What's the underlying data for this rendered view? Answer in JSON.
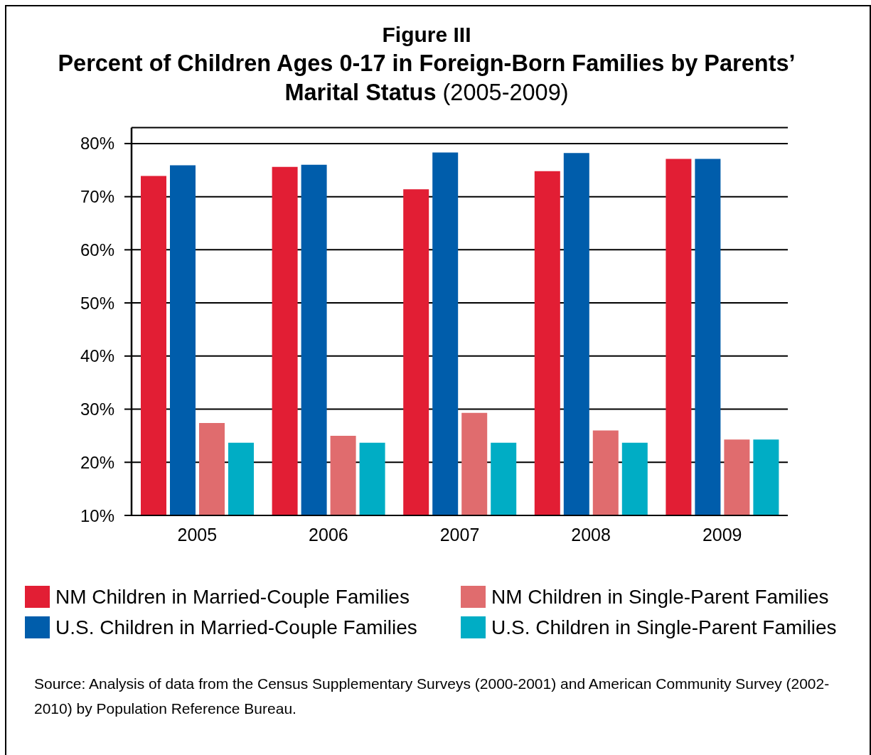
{
  "chart_data": {
    "type": "bar",
    "title": "Figure III",
    "subtitle": "Percent of Children Ages 0-17 in Foreign-Born Families by Parents’ Marital Status (2005-2009)",
    "categories": [
      "2005",
      "2006",
      "2007",
      "2008",
      "2009"
    ],
    "series": [
      {
        "name": "NM Children in Married-Couple Families",
        "color": "#e21e34",
        "values": [
          73.9,
          75.6,
          71.4,
          74.8,
          77.1
        ]
      },
      {
        "name": "U.S. Children in Married-Couple Families",
        "color": "#005dab",
        "values": [
          75.9,
          76.0,
          78.3,
          78.2,
          77.1
        ]
      },
      {
        "name": "NM Children in Single-Parent Families",
        "color": "#e06c6e",
        "values": [
          27.4,
          25.0,
          29.3,
          26.0,
          24.3
        ]
      },
      {
        "name": "U.S. Children in Single-Parent Families",
        "color": "#00adc5",
        "values": [
          23.7,
          23.7,
          23.7,
          23.7,
          24.3
        ]
      }
    ],
    "ylim": [
      10,
      83
    ],
    "yticks": [
      {
        "value": 10,
        "label": "10%"
      },
      {
        "value": 20,
        "label": "20%"
      },
      {
        "value": 30,
        "label": "30%"
      },
      {
        "value": 40,
        "label": "40%"
      },
      {
        "value": 50,
        "label": "50%"
      },
      {
        "value": 60,
        "label": "60%"
      },
      {
        "value": 70,
        "label": "70%"
      },
      {
        "value": 80,
        "label": "80%"
      }
    ],
    "grid": "y",
    "legend": "bottom",
    "annotations": [
      "Source: Analysis of data from the Census Supplementary Surveys (2000-2001) and American Community Survey (2002-2010) by Population Reference Bureau."
    ]
  }
}
